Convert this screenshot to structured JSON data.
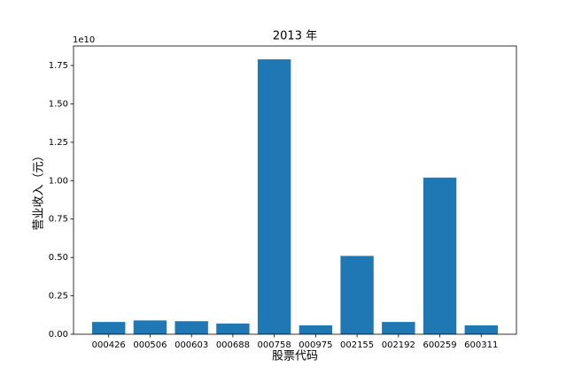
{
  "chart_data": {
    "type": "bar",
    "title": "2013 年",
    "x_label": "股票代码",
    "y_label": "营业收入（元）",
    "y_offset_label": "1e10",
    "categories": [
      "000426",
      "000506",
      "000603",
      "000688",
      "000758",
      "000975",
      "002155",
      "002192",
      "600259",
      "600311"
    ],
    "values": [
      0.08,
      0.09,
      0.085,
      0.07,
      1.79,
      0.058,
      0.51,
      0.08,
      1.02,
      0.058
    ],
    "color": "#1f77b4",
    "ylim": [
      0,
      1.877
    ],
    "yticks": [
      {
        "value": 0,
        "label": "0.00"
      },
      0.25,
      {
        "value": 0.5,
        "label": "0.50"
      },
      0.75,
      {
        "value": 1,
        "label": "1.00"
      },
      1.25,
      {
        "value": 1.5,
        "label": "1.50"
      },
      1.75
    ],
    "grid": false
  }
}
